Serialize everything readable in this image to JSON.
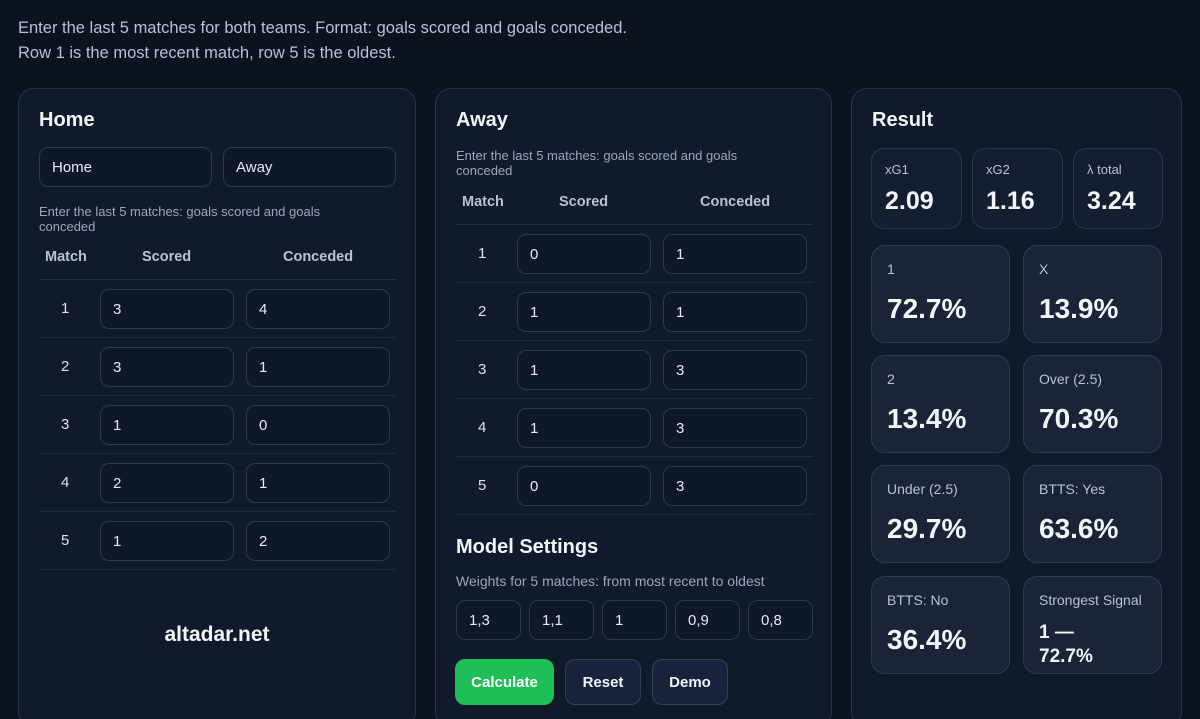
{
  "intro": {
    "line1": "Enter the last 5 matches for both teams. Format: goals scored and goals conceded.",
    "line2": "Row 1 is the most recent match, row 5 is the oldest."
  },
  "home": {
    "title": "Home",
    "team_home": "Home",
    "team_away": "Away",
    "hint": "Enter the last 5 matches: goals scored and goals conceded",
    "headers": {
      "match": "Match",
      "scored": "Scored",
      "conceded": "Conceded"
    },
    "rows": [
      {
        "n": "1",
        "scored": "3",
        "conceded": "4"
      },
      {
        "n": "2",
        "scored": "3",
        "conceded": "1"
      },
      {
        "n": "3",
        "scored": "1",
        "conceded": "0"
      },
      {
        "n": "4",
        "scored": "2",
        "conceded": "1"
      },
      {
        "n": "5",
        "scored": "1",
        "conceded": "2"
      }
    ],
    "brand": "altadar.net"
  },
  "away": {
    "title": "Away",
    "hint": "Enter the last 5 matches: goals scored and goals conceded",
    "headers": {
      "match": "Match",
      "scored": "Scored",
      "conceded": "Conceded"
    },
    "rows": [
      {
        "n": "1",
        "scored": "0",
        "conceded": "1"
      },
      {
        "n": "2",
        "scored": "1",
        "conceded": "1"
      },
      {
        "n": "3",
        "scored": "1",
        "conceded": "3"
      },
      {
        "n": "4",
        "scored": "1",
        "conceded": "3"
      },
      {
        "n": "5",
        "scored": "0",
        "conceded": "3"
      }
    ],
    "settings_title": "Model Settings",
    "weights_hint": "Weights for 5 matches: from most recent to oldest",
    "weights": [
      "1,3",
      "1,1",
      "1",
      "0,9",
      "0,8"
    ],
    "buttons": {
      "calculate": "Calculate",
      "reset": "Reset",
      "demo": "Demo"
    }
  },
  "result": {
    "title": "Result",
    "xg1_label": "xG1",
    "xg1": "2.09",
    "xg2_label": "xG2",
    "xg2": "1.16",
    "lambda_label": "λ total",
    "lambda": "3.24",
    "cards": [
      {
        "label": "1",
        "value": "72.7%"
      },
      {
        "label": "X",
        "value": "13.9%"
      },
      {
        "label": "2",
        "value": "13.4%"
      },
      {
        "label": "Over (2.5)",
        "value": "70.3%"
      },
      {
        "label": "Under (2.5)",
        "value": "29.7%"
      },
      {
        "label": "BTTS: Yes",
        "value": "63.6%"
      },
      {
        "label": "BTTS: No",
        "value": "36.4%"
      },
      {
        "label": "Strongest Signal",
        "value_line1": "1 —",
        "value_line2": "72.7%"
      }
    ]
  },
  "colors": {
    "background": "#0b1220",
    "panel": "#111a2b",
    "accent": "#1fbf57",
    "title_accent": "#84cc16"
  }
}
